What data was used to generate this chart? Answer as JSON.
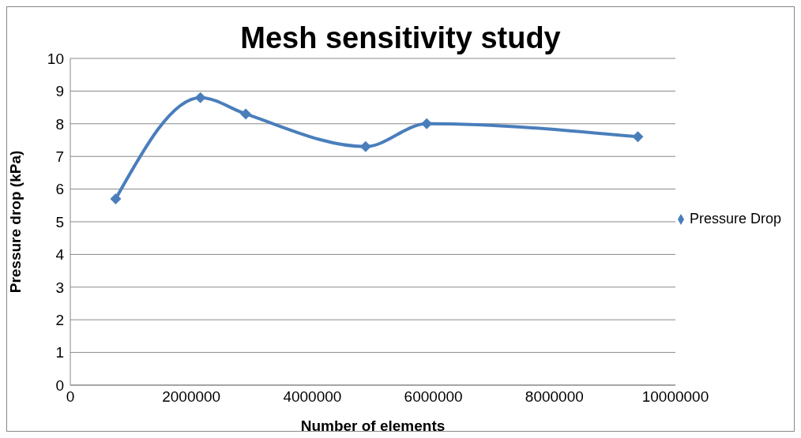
{
  "chart_data": {
    "type": "line",
    "title": "Mesh sensitivity study",
    "xlabel": "Number of elements",
    "ylabel": "Pressure drop (kPa)",
    "x": [
      750000,
      2150000,
      2900000,
      4880000,
      5890000,
      9380000
    ],
    "series": [
      {
        "name": "Pressure Drop",
        "color": "#4a7ebb",
        "values": [
          5.7,
          8.8,
          8.3,
          7.3,
          8.0,
          7.6
        ]
      }
    ],
    "xlim": [
      0,
      10000000
    ],
    "xticks": [
      0,
      2000000,
      4000000,
      6000000,
      8000000,
      10000000
    ],
    "ylim": [
      0,
      10
    ],
    "yticks": [
      0,
      1,
      2,
      3,
      4,
      5,
      6,
      7,
      8,
      9,
      10
    ],
    "grid": "y",
    "legend": "right",
    "marker": "diamond",
    "line_style": "solid"
  }
}
